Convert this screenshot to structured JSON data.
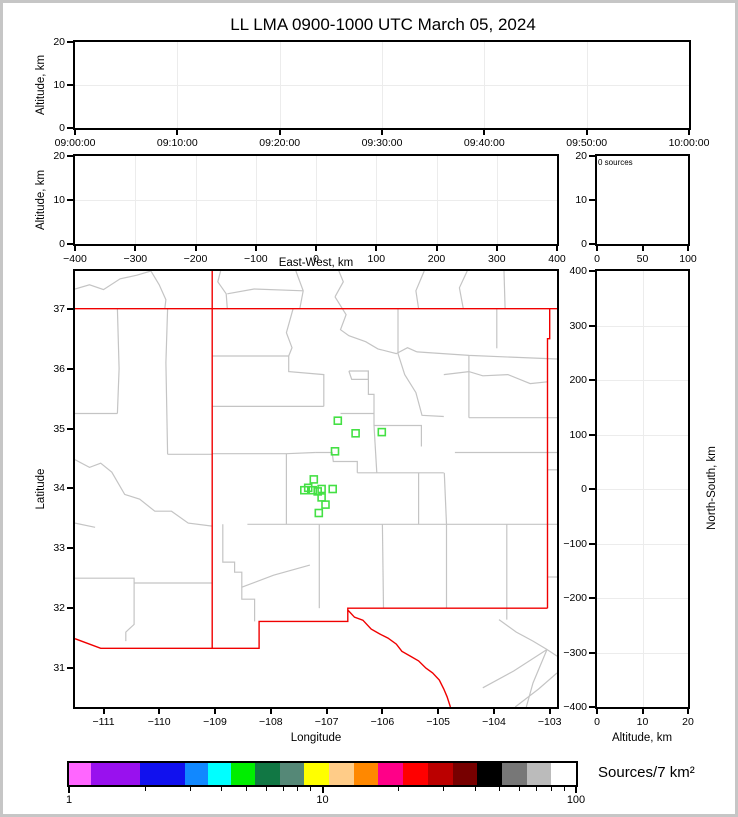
{
  "title": "LL LMA 0900-1000 UTC March 05, 2024",
  "panels": {
    "time_height": {
      "ylabel": "Altitude, km",
      "y": {
        "range": [
          0,
          20
        ],
        "values": [
          0,
          10,
          20
        ],
        "labels": [
          "0",
          "10",
          "20"
        ]
      },
      "x": {
        "range": [
          0,
          3600
        ],
        "values": [
          0,
          600,
          1200,
          1800,
          2400,
          3000,
          3600
        ],
        "labels": [
          "09:00:00",
          "09:10:00",
          "09:20:00",
          "09:30:00",
          "09:40:00",
          "09:50:00",
          "10:00:00"
        ]
      }
    },
    "ew_height": {
      "ylabel": "Altitude, km",
      "xlabel": "East-West, km",
      "y": {
        "range": [
          0,
          20
        ],
        "values": [
          0,
          10,
          20
        ],
        "labels": [
          "0",
          "10",
          "20"
        ]
      },
      "x": {
        "range": [
          -400,
          400
        ],
        "values": [
          -400,
          -300,
          -200,
          -100,
          0,
          100,
          200,
          300,
          400
        ],
        "labels": [
          "−400",
          "−300",
          "−200",
          "−100",
          "0",
          "100",
          "200",
          "300",
          "400"
        ]
      }
    },
    "histogram": {
      "annotation": "0 sources",
      "y": {
        "range": [
          0,
          20
        ],
        "values": [
          0,
          10,
          20
        ],
        "labels": [
          "0",
          "10",
          "20"
        ]
      },
      "x": {
        "range": [
          0,
          100
        ],
        "values": [
          0,
          50,
          100
        ],
        "labels": [
          "0",
          "50",
          "100"
        ]
      }
    },
    "map": {
      "xlabel": "Longitude",
      "ylabel": "Latitude",
      "x": {
        "range": [
          -111.51,
          -102.87
        ],
        "values": [
          -111,
          -110,
          -109,
          -108,
          -107,
          -106,
          -105,
          -104,
          -103
        ],
        "labels": [
          "−111",
          "−110",
          "−109",
          "−108",
          "−107",
          "−106",
          "−105",
          "−104",
          "−103"
        ]
      },
      "y": {
        "range": [
          30.35,
          37.63
        ],
        "values": [
          31,
          32,
          33,
          34,
          35,
          36,
          37
        ],
        "labels": [
          "31",
          "32",
          "33",
          "34",
          "35",
          "36",
          "37"
        ]
      }
    },
    "ns_height": {
      "xlabel": "Altitude, km",
      "ylabel": "North-South, km",
      "x": {
        "range": [
          0,
          20
        ],
        "values": [
          0,
          10,
          20
        ],
        "labels": [
          "0",
          "10",
          "20"
        ]
      },
      "y": {
        "range": [
          -400,
          400
        ],
        "values": [
          -400,
          -300,
          -200,
          -100,
          0,
          100,
          200,
          300,
          400
        ],
        "labels": [
          "−400",
          "−300",
          "−200",
          "−100",
          "0",
          "100",
          "200",
          "300",
          "400"
        ]
      }
    }
  },
  "colorbar": {
    "title": "Sources/7 km²",
    "scale": "log",
    "range": [
      1,
      100
    ],
    "major_ticks": [
      1,
      10,
      100
    ],
    "major_labels": [
      "1",
      "10",
      "100"
    ],
    "minor_ticks": [
      2,
      3,
      4,
      5,
      6,
      7,
      8,
      9,
      20,
      30,
      40,
      50,
      60,
      70,
      80,
      90
    ],
    "colors": [
      "#ff66ff",
      "#9911ee",
      "#1111ee",
      "#1188ff",
      "#00ffff",
      "#00ee00",
      "#117744",
      "#558877",
      "#ffff00",
      "#ffcc88",
      "#ff8800",
      "#ff0088",
      "#ff0000",
      "#bb0000",
      "#770000",
      "#000000",
      "#777777",
      "#bbbbbb",
      "#ffffff"
    ],
    "bounds": [
      0,
      0.043,
      0.14,
      0.229,
      0.275,
      0.32,
      0.367,
      0.416,
      0.464,
      0.513,
      0.562,
      0.61,
      0.659,
      0.708,
      0.757,
      0.805,
      0.854,
      0.903,
      0.951,
      1
    ]
  },
  "chart_data": {
    "type": "scatter",
    "description": "XLMA-style lightning mapping array display: time-height panel, east-west height panel, altitude histogram (0 sources), plan-view map with state and county borders and LMA station markers, north-south height panel, and log color scale.",
    "source_count": 0,
    "map_extent": {
      "lon": [
        -111.51,
        -102.87
      ],
      "lat": [
        30.35,
        37.63
      ]
    },
    "stations_lonlat": [
      [
        -106.8,
        35.13
      ],
      [
        -106.48,
        34.92
      ],
      [
        -106.01,
        34.94
      ],
      [
        -106.85,
        34.62
      ],
      [
        -107.23,
        34.15
      ],
      [
        -107.33,
        34.01
      ],
      [
        -107.4,
        33.97
      ],
      [
        -107.25,
        33.97
      ],
      [
        -107.16,
        33.95
      ],
      [
        -107.09,
        33.99
      ],
      [
        -106.89,
        33.99
      ],
      [
        -107.09,
        33.85
      ],
      [
        -107.02,
        33.73
      ],
      [
        -107.14,
        33.59
      ]
    ],
    "state_borders_red": [
      [
        [
          -111.51,
          37.0
        ],
        [
          -102.87,
          37.0
        ]
      ],
      [
        [
          -109.05,
          37.63
        ],
        [
          -109.05,
          31.33
        ]
      ],
      [
        [
          -111.51,
          31.49
        ],
        [
          -111.05,
          31.33
        ],
        [
          -108.21,
          31.33
        ],
        [
          -108.21,
          31.78
        ],
        [
          -106.62,
          31.78
        ],
        [
          -106.62,
          32.0
        ],
        [
          -103.04,
          32.0
        ]
      ],
      [
        [
          -103.04,
          32.0
        ],
        [
          -103.04,
          36.5
        ],
        [
          -103.0,
          36.5
        ],
        [
          -103.0,
          37.0
        ]
      ],
      [
        [
          -106.62,
          31.97
        ],
        [
          -106.5,
          31.85
        ],
        [
          -106.35,
          31.8
        ],
        [
          -106.2,
          31.65
        ],
        [
          -106.05,
          31.57
        ],
        [
          -105.9,
          31.5
        ],
        [
          -105.75,
          31.4
        ],
        [
          -105.65,
          31.28
        ],
        [
          -105.5,
          31.2
        ],
        [
          -105.35,
          31.12
        ],
        [
          -105.22,
          31.0
        ],
        [
          -105.1,
          30.92
        ],
        [
          -104.98,
          30.8
        ],
        [
          -104.9,
          30.65
        ],
        [
          -104.84,
          30.52
        ],
        [
          -104.78,
          30.35
        ]
      ]
    ],
    "county_lines_gray": [
      [
        [
          -111.51,
          37.33
        ],
        [
          -111.25,
          37.4
        ],
        [
          -111.0,
          37.32
        ],
        [
          -110.7,
          37.5
        ],
        [
          -110.4,
          37.56
        ],
        [
          -110.15,
          37.63
        ]
      ],
      [
        [
          -110.15,
          37.63
        ],
        [
          -110.0,
          37.4
        ],
        [
          -109.88,
          37.15
        ],
        [
          -109.9,
          37.0
        ]
      ],
      [
        [
          -108.78,
          37.0
        ],
        [
          -108.8,
          37.25
        ],
        [
          -108.95,
          37.45
        ],
        [
          -108.9,
          37.63
        ]
      ],
      [
        [
          -108.78,
          37.25
        ],
        [
          -108.3,
          37.33
        ],
        [
          -107.42,
          37.3
        ]
      ],
      [
        [
          -107.48,
          37.0
        ],
        [
          -107.42,
          37.3
        ],
        [
          -107.55,
          37.63
        ]
      ],
      [
        [
          -106.85,
          37.2
        ],
        [
          -106.7,
          37.45
        ],
        [
          -106.78,
          37.63
        ]
      ],
      [
        [
          -105.35,
          37.0
        ],
        [
          -105.4,
          37.3
        ],
        [
          -105.25,
          37.63
        ]
      ],
      [
        [
          -104.55,
          37.0
        ],
        [
          -104.62,
          37.35
        ],
        [
          -104.48,
          37.63
        ]
      ],
      [
        [
          -103.8,
          37.0
        ],
        [
          -103.82,
          37.63
        ]
      ],
      [
        [
          -110.75,
          37.0
        ],
        [
          -110.72,
          36.0
        ],
        [
          -110.75,
          35.25
        ]
      ],
      [
        [
          -109.85,
          37.0
        ],
        [
          -109.88,
          36.1
        ],
        [
          -109.85,
          34.57
        ]
      ],
      [
        [
          -111.51,
          35.25
        ],
        [
          -110.75,
          35.25
        ]
      ],
      [
        [
          -111.51,
          34.48
        ],
        [
          -111.25,
          34.35
        ],
        [
          -111.05,
          34.42
        ],
        [
          -110.85,
          34.27
        ],
        [
          -110.62,
          33.9
        ],
        [
          -110.35,
          33.82
        ],
        [
          -110.08,
          33.62
        ],
        [
          -109.78,
          33.62
        ],
        [
          -109.48,
          33.42
        ],
        [
          -109.05,
          33.37
        ]
      ],
      [
        [
          -109.85,
          34.57
        ],
        [
          -109.05,
          34.57
        ]
      ],
      [
        [
          -111.51,
          33.42
        ],
        [
          -111.15,
          33.35
        ]
      ],
      [
        [
          -111.51,
          32.5
        ],
        [
          -110.45,
          32.5
        ],
        [
          -110.45,
          32.42
        ],
        [
          -109.05,
          32.42
        ]
      ],
      [
        [
          -110.45,
          32.42
        ],
        [
          -110.45,
          31.73
        ],
        [
          -110.6,
          31.6
        ],
        [
          -110.6,
          31.45
        ]
      ],
      [
        [
          -109.05,
          36.21
        ],
        [
          -107.68,
          36.21
        ]
      ],
      [
        [
          -107.6,
          37.0
        ],
        [
          -107.72,
          36.6
        ],
        [
          -107.62,
          36.35
        ],
        [
          -107.68,
          36.21
        ]
      ],
      [
        [
          -107.68,
          36.21
        ],
        [
          -107.68,
          35.95
        ],
        [
          -107.05,
          35.9
        ],
        [
          -107.05,
          35.37
        ]
      ],
      [
        [
          -109.05,
          35.37
        ],
        [
          -107.05,
          35.37
        ]
      ],
      [
        [
          -106.85,
          37.2
        ],
        [
          -106.65,
          36.9
        ],
        [
          -106.75,
          36.65
        ],
        [
          -106.6,
          36.55
        ],
        [
          -106.3,
          36.45
        ],
        [
          -106.08,
          36.33
        ],
        [
          -105.75,
          36.25
        ],
        [
          -105.55,
          36.35
        ],
        [
          -105.38,
          36.28
        ]
      ],
      [
        [
          -106.6,
          35.96
        ],
        [
          -106.25,
          35.96
        ],
        [
          -106.25,
          35.82
        ],
        [
          -106.55,
          35.82
        ],
        [
          -106.6,
          35.96
        ]
      ],
      [
        [
          -106.25,
          35.96
        ],
        [
          -106.25,
          35.57
        ],
        [
          -106.15,
          35.57
        ],
        [
          -106.15,
          35.05
        ]
      ],
      [
        [
          -106.75,
          35.25
        ],
        [
          -106.15,
          35.25
        ]
      ],
      [
        [
          -106.15,
          35.05
        ],
        [
          -105.3,
          35.05
        ],
        [
          -105.3,
          34.7
        ]
      ],
      [
        [
          -105.72,
          36.25
        ],
        [
          -105.6,
          35.9
        ],
        [
          -105.4,
          35.6
        ],
        [
          -105.29,
          35.22
        ],
        [
          -104.9,
          35.2
        ]
      ],
      [
        [
          -106.15,
          35.05
        ],
        [
          -106.1,
          34.26
        ]
      ],
      [
        [
          -106.45,
          34.26
        ],
        [
          -104.9,
          34.26
        ]
      ],
      [
        [
          -107.2,
          34.6
        ],
        [
          -106.9,
          34.6
        ],
        [
          -106.88,
          34.45
        ],
        [
          -106.45,
          34.45
        ],
        [
          -106.45,
          34.26
        ]
      ],
      [
        [
          -109.05,
          34.58
        ],
        [
          -107.72,
          34.58
        ],
        [
          -107.2,
          34.6
        ]
      ],
      [
        [
          -107.72,
          34.58
        ],
        [
          -107.72,
          33.4
        ]
      ],
      [
        [
          -108.42,
          33.4
        ],
        [
          -102.87,
          33.4
        ]
      ],
      [
        [
          -108.86,
          33.4
        ],
        [
          -108.86,
          32.77
        ],
        [
          -108.65,
          32.77
        ],
        [
          -108.65,
          32.6
        ],
        [
          -108.52,
          32.6
        ],
        [
          -108.52,
          32.15
        ],
        [
          -108.29,
          32.15
        ],
        [
          -108.29,
          31.78
        ]
      ],
      [
        [
          -108.52,
          32.35
        ],
        [
          -107.95,
          32.55
        ],
        [
          -107.3,
          32.72
        ]
      ],
      [
        [
          -107.13,
          33.4
        ],
        [
          -107.13,
          32.0
        ]
      ],
      [
        [
          -106.0,
          33.4
        ],
        [
          -105.98,
          32.0
        ]
      ],
      [
        [
          -105.35,
          34.26
        ],
        [
          -105.35,
          33.4
        ]
      ],
      [
        [
          -104.89,
          34.26
        ],
        [
          -104.85,
          33.4
        ],
        [
          -104.85,
          32.0
        ]
      ],
      [
        [
          -103.77,
          33.4
        ],
        [
          -103.77,
          32.0
        ]
      ],
      [
        [
          -104.7,
          34.6
        ],
        [
          -102.87,
          34.6
        ]
      ],
      [
        [
          -104.45,
          35.18
        ],
        [
          -102.87,
          35.18
        ]
      ],
      [
        [
          -104.45,
          36.22
        ],
        [
          -104.45,
          35.18
        ]
      ],
      [
        [
          -104.9,
          35.9
        ],
        [
          -104.45,
          35.95
        ],
        [
          -104.2,
          35.88
        ],
        [
          -103.75,
          35.9
        ],
        [
          -103.35,
          35.75
        ],
        [
          -103.04,
          35.78
        ]
      ],
      [
        [
          -103.95,
          37.0
        ],
        [
          -103.95,
          36.34
        ]
      ],
      [
        [
          -105.38,
          36.28
        ],
        [
          -104.45,
          36.22
        ],
        [
          -102.87,
          36.16
        ]
      ],
      [
        [
          -105.72,
          37.0
        ],
        [
          -105.72,
          36.25
        ]
      ],
      [
        [
          -103.91,
          31.81
        ],
        [
          -103.6,
          31.6
        ],
        [
          -103.3,
          31.45
        ],
        [
          -103.05,
          31.31
        ],
        [
          -102.87,
          31.2
        ]
      ],
      [
        [
          -104.2,
          30.67
        ],
        [
          -103.65,
          30.95
        ],
        [
          -103.05,
          31.31
        ]
      ],
      [
        [
          -103.05,
          31.31
        ],
        [
          -103.3,
          30.75
        ],
        [
          -103.42,
          30.35
        ]
      ],
      [
        [
          -103.62,
          30.35
        ],
        [
          -103.2,
          30.65
        ],
        [
          -102.87,
          30.92
        ]
      ],
      [
        [
          -103.77,
          32.0
        ],
        [
          -103.77,
          31.81
        ]
      ],
      [
        [
          -103.04,
          34.31
        ],
        [
          -102.87,
          34.31
        ]
      ],
      [
        [
          -103.04,
          32.52
        ],
        [
          -102.87,
          32.52
        ]
      ]
    ],
    "colors": {
      "station_marker": "#44e044",
      "state_border": "#f00000",
      "county_line": "#c4c4c4",
      "grid_line": "#ececec"
    }
  }
}
